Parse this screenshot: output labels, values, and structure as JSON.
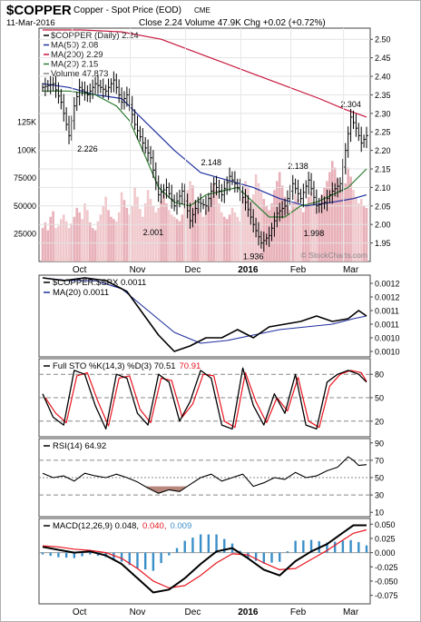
{
  "header": {
    "symbol": "$COPPER",
    "name": "Copper - Spot Price (EOD)",
    "exchange": "CME",
    "date": "11-Mar-2016",
    "quote": "Close 2.24  Volume 47.9K  Chg +0.02 (+0.72%)",
    "watermark": "© StockCharts.com"
  },
  "colors": {
    "price": "#000000",
    "ma50": "#1f2f9f",
    "ma200": "#c8173e",
    "ma20": "#2e7d32",
    "volume_up": "#e8b0b8",
    "volume_down": "#f0c8cc",
    "stoch_k": "#000000",
    "stoch_d": "#e8141e",
    "rsi": "#000000",
    "rsi_fill": "#b07a6e",
    "macd": "#000000",
    "signal": "#e8141e",
    "histogram": "#3b8fc8"
  },
  "chart_data": [
    {
      "type": "line",
      "panel": "price",
      "legend": [
        {
          "text": "$COPPER (Daily) 2.24",
          "color": "#000000"
        },
        {
          "text": "MA(50) 2.08",
          "color": "#1f2f9f"
        },
        {
          "text": "MA(200) 2.29",
          "color": "#c8173e"
        },
        {
          "text": "MA(20) 2.15",
          "color": "#2e7d32"
        },
        {
          "text": "Volume 47,873",
          "color": "#888888"
        }
      ],
      "x_labels": [
        {
          "label": "Oct",
          "i": 14,
          "bold": false
        },
        {
          "label": "Nov",
          "i": 36,
          "bold": false
        },
        {
          "label": "Dec",
          "i": 57,
          "bold": false
        },
        {
          "label": "2016",
          "i": 78,
          "bold": true
        },
        {
          "label": "Feb",
          "i": 97,
          "bold": false
        },
        {
          "label": "Mar",
          "i": 117,
          "bold": false
        }
      ],
      "n_bars": 124,
      "ylim": [
        1.9,
        2.53
      ],
      "yticks": [
        "2.50",
        "2.45",
        "2.40",
        "2.35",
        "2.30",
        "2.25",
        "2.20",
        "2.15",
        "2.10",
        "2.05",
        "2.00",
        "1.95"
      ],
      "ytick_values": [
        2.5,
        2.45,
        2.4,
        2.35,
        2.3,
        2.25,
        2.2,
        2.15,
        2.1,
        2.05,
        2.0,
        1.95
      ],
      "price_x": [
        0,
        4,
        7,
        10,
        12,
        14,
        17,
        20,
        24,
        27,
        30,
        32,
        35,
        38,
        41,
        44,
        47,
        50,
        53,
        56,
        59,
        62,
        65,
        68,
        71,
        74,
        77,
        80,
        83,
        86,
        89,
        92,
        95,
        98,
        101,
        104,
        107,
        110,
        113,
        115,
        117,
        119,
        121,
        123
      ],
      "price_y": [
        2.37,
        2.38,
        2.33,
        2.24,
        2.32,
        2.37,
        2.35,
        2.38,
        2.36,
        2.39,
        2.33,
        2.35,
        2.27,
        2.22,
        2.18,
        2.08,
        2.1,
        2.05,
        2.09,
        2.01,
        2.06,
        2.05,
        2.11,
        2.08,
        2.13,
        2.1,
        2.06,
        2.0,
        1.95,
        1.97,
        2.03,
        2.05,
        2.11,
        2.07,
        2.12,
        2.05,
        2.06,
        2.09,
        2.11,
        2.2,
        2.29,
        2.26,
        2.22,
        2.24
      ],
      "ma20_x": [
        0,
        10,
        20,
        28,
        33,
        38,
        44,
        50,
        56,
        62,
        68,
        74,
        80,
        86,
        92,
        98,
        104,
        110,
        116,
        123
      ],
      "ma20_y": [
        2.36,
        2.36,
        2.35,
        2.32,
        2.28,
        2.2,
        2.1,
        2.06,
        2.05,
        2.08,
        2.09,
        2.1,
        2.06,
        2.02,
        2.02,
        2.05,
        2.06,
        2.08,
        2.1,
        2.15
      ],
      "ma50_x": [
        0,
        10,
        20,
        30,
        40,
        50,
        60,
        70,
        80,
        90,
        100,
        110,
        118,
        123
      ],
      "ma50_y": [
        2.38,
        2.37,
        2.35,
        2.34,
        2.27,
        2.2,
        2.14,
        2.12,
        2.1,
        2.07,
        2.05,
        2.06,
        2.07,
        2.08
      ],
      "ma200_x": [
        0,
        15,
        30,
        45,
        60,
        75,
        90,
        105,
        115,
        123
      ],
      "ma200_y": [
        2.56,
        2.54,
        2.52,
        2.5,
        2.46,
        2.42,
        2.38,
        2.34,
        2.31,
        2.29
      ],
      "annotations": [
        {
          "text": "2.226",
          "i": 17,
          "y": 2.226,
          "pos": "below"
        },
        {
          "text": "2.001",
          "i": 42,
          "y": 2.001,
          "pos": "below"
        },
        {
          "text": "2.148",
          "i": 64,
          "y": 2.148,
          "pos": "above"
        },
        {
          "text": "1.936",
          "i": 80,
          "y": 1.936,
          "pos": "below"
        },
        {
          "text": "2.138",
          "i": 97,
          "y": 2.138,
          "pos": "above"
        },
        {
          "text": "1.998",
          "i": 103,
          "y": 1.998,
          "pos": "below"
        },
        {
          "text": "2.304",
          "i": 117,
          "y": 2.304,
          "pos": "above"
        }
      ]
    },
    {
      "type": "bar",
      "panel": "volume",
      "ylim": [
        0,
        130000
      ],
      "yticks": [
        "125K",
        "100K",
        "75000",
        "50000",
        "25000"
      ],
      "ytick_values": [
        125000,
        100000,
        75000,
        50000,
        25000
      ],
      "values": [
        30000,
        35000,
        28000,
        40000,
        45000,
        30000,
        32000,
        38000,
        42000,
        36000,
        30000,
        34000,
        40000,
        48000,
        44000,
        38000,
        52000,
        46000,
        35000,
        30000,
        28000,
        36000,
        42000,
        50000,
        58000,
        46000,
        40000,
        38000,
        36000,
        44000,
        62000,
        55000,
        48000,
        42000,
        50000,
        66000,
        58000,
        47000,
        40000,
        52000,
        64000,
        56000,
        50000,
        44000,
        48000,
        54000,
        60000,
        52000,
        46000,
        42000,
        40000,
        38000,
        36000,
        42000,
        56000,
        64000,
        72000,
        68000,
        54000,
        48000,
        44000,
        40000,
        46000,
        50000,
        58000,
        70000,
        64000,
        52000,
        44000,
        40000,
        38000,
        42000,
        48000,
        44000,
        40000,
        36000,
        58000,
        72000,
        66000,
        54000,
        60000,
        78000,
        70000,
        62000,
        56000,
        50000,
        46000,
        52000,
        64000,
        72000,
        80000,
        68000,
        58000,
        50000,
        46000,
        52000,
        60000,
        56000,
        48000,
        44000,
        50000,
        58000,
        62000,
        54000,
        48000,
        52000,
        60000,
        66000,
        72000,
        80000,
        90000,
        84000,
        74000,
        68000,
        62000,
        70000,
        84000,
        76000,
        64000,
        58000,
        52000,
        56000,
        50000,
        47873
      ]
    },
    {
      "type": "line",
      "panel": "ratio",
      "legend": [
        {
          "text": "$COPPER:$SPX 0.0011",
          "color": "#000000"
        },
        {
          "text": "MA(20) 0.0011",
          "color": "#1f2f9f"
        }
      ],
      "ylim": [
        0.00095,
        0.00125
      ],
      "yticks": [
        "0.0012",
        "0.0012",
        "0.0011",
        "0.0011",
        "0.0010",
        "0.0010"
      ],
      "ytick_values": [
        0.00122,
        0.00117,
        0.00112,
        0.00107,
        0.00102,
        0.00097
      ],
      "line_x": [
        0,
        8,
        16,
        24,
        32,
        38,
        44,
        50,
        56,
        62,
        68,
        74,
        80,
        86,
        92,
        98,
        104,
        110,
        116,
        120,
        123
      ],
      "line_y": [
        0.00124,
        0.00123,
        0.00124,
        0.00123,
        0.00119,
        0.00111,
        0.00103,
        0.00097,
        0.00099,
        0.00102,
        0.00102,
        0.00105,
        0.00102,
        0.00106,
        0.00107,
        0.00108,
        0.0011,
        0.00108,
        0.00109,
        0.00112,
        0.0011
      ],
      "ma_x": [
        0,
        10,
        20,
        30,
        40,
        50,
        60,
        70,
        80,
        90,
        100,
        110,
        118,
        123
      ],
      "ma_y": [
        0.00124,
        0.00123,
        0.00123,
        0.0012,
        0.00112,
        0.00104,
        0.001,
        0.00101,
        0.00103,
        0.00105,
        0.00106,
        0.00107,
        0.00109,
        0.0011
      ]
    },
    {
      "type": "line",
      "panel": "stochastic",
      "legend": [
        {
          "text": "Full STO %K(14,3) %D(3) 70.51",
          "color": "#000000"
        },
        {
          "text": "70.91",
          "color": "#e8141e"
        }
      ],
      "ylim": [
        0,
        100
      ],
      "yticks": [
        "80",
        "50",
        "20"
      ],
      "ytick_values": [
        80,
        50,
        20
      ],
      "k_x": [
        0,
        4,
        8,
        12,
        16,
        20,
        24,
        28,
        32,
        36,
        40,
        44,
        48,
        52,
        56,
        60,
        64,
        68,
        72,
        76,
        80,
        84,
        88,
        92,
        96,
        100,
        104,
        108,
        112,
        116,
        120,
        123
      ],
      "k_y": [
        55,
        25,
        15,
        85,
        80,
        40,
        10,
        80,
        75,
        30,
        15,
        80,
        70,
        20,
        45,
        85,
        75,
        15,
        10,
        88,
        40,
        15,
        55,
        30,
        80,
        15,
        10,
        70,
        80,
        85,
        80,
        70
      ],
      "d_x": [
        1,
        5,
        9,
        13,
        17,
        21,
        25,
        29,
        33,
        37,
        41,
        45,
        49,
        53,
        57,
        61,
        65,
        69,
        73,
        77,
        81,
        85,
        89,
        93,
        97,
        101,
        105,
        109,
        113,
        117,
        121,
        123
      ],
      "d_y": [
        50,
        30,
        18,
        78,
        82,
        45,
        14,
        75,
        78,
        35,
        18,
        75,
        72,
        25,
        42,
        80,
        78,
        20,
        12,
        82,
        45,
        18,
        50,
        33,
        76,
        20,
        12,
        65,
        80,
        85,
        82,
        71
      ]
    },
    {
      "type": "line",
      "panel": "rsi",
      "legend": [
        {
          "text": "RSI(14) 64.92",
          "color": "#000000"
        }
      ],
      "ylim": [
        5,
        95
      ],
      "yticks": [
        "90",
        "70",
        "50",
        "30",
        "10"
      ],
      "ytick_values": [
        90,
        70,
        50,
        30,
        10
      ],
      "x": [
        0,
        4,
        8,
        12,
        16,
        20,
        24,
        28,
        32,
        36,
        40,
        44,
        48,
        52,
        56,
        60,
        64,
        68,
        72,
        76,
        80,
        84,
        88,
        92,
        96,
        100,
        104,
        108,
        112,
        116,
        118,
        120,
        123
      ],
      "y": [
        55,
        50,
        52,
        46,
        55,
        52,
        50,
        54,
        50,
        45,
        38,
        32,
        36,
        34,
        42,
        50,
        54,
        46,
        50,
        54,
        40,
        44,
        50,
        48,
        56,
        50,
        52,
        58,
        62,
        74,
        70,
        64,
        65
      ]
    },
    {
      "type": "line",
      "panel": "macd",
      "legend": [
        {
          "text": "MACD(12,26,9) 0.048,",
          "color": "#000000"
        },
        {
          "text": "0.040,",
          "color": "#e8141e"
        },
        {
          "text": "0.009",
          "color": "#3b8fc8"
        }
      ],
      "ylim": [
        -0.09,
        0.06
      ],
      "yticks": [
        "0.050",
        "0.025",
        "0.000",
        "-0.025",
        "-0.050",
        "-0.075"
      ],
      "ytick_values": [
        0.05,
        0.025,
        0.0,
        -0.025,
        -0.05,
        -0.075
      ],
      "macd_x": [
        0,
        6,
        12,
        18,
        24,
        30,
        36,
        42,
        48,
        54,
        60,
        66,
        72,
        78,
        84,
        90,
        96,
        102,
        108,
        114,
        118,
        123
      ],
      "macd_y": [
        0.01,
        0.005,
        0.0,
        0.002,
        -0.005,
        -0.02,
        -0.045,
        -0.07,
        -0.065,
        -0.045,
        -0.02,
        0.002,
        0.008,
        -0.01,
        -0.03,
        -0.04,
        -0.015,
        0.002,
        0.015,
        0.035,
        0.048,
        0.048
      ],
      "signal_x": [
        0,
        6,
        12,
        18,
        24,
        30,
        36,
        42,
        48,
        54,
        60,
        66,
        72,
        78,
        84,
        90,
        96,
        102,
        108,
        114,
        118,
        123
      ],
      "signal_y": [
        0.012,
        0.01,
        0.006,
        0.004,
        0.0,
        -0.01,
        -0.028,
        -0.05,
        -0.062,
        -0.058,
        -0.04,
        -0.018,
        -0.002,
        -0.004,
        -0.018,
        -0.03,
        -0.028,
        -0.012,
        0.004,
        0.022,
        0.034,
        0.04
      ],
      "histogram_every": 3
    }
  ]
}
